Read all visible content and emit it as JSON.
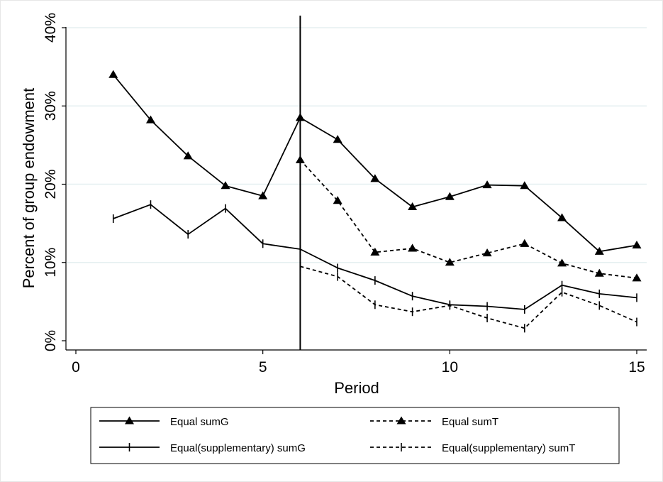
{
  "chart_data": {
    "type": "line",
    "xlabel": "Period",
    "ylabel": "Percent of group endowment",
    "xlim": [
      0,
      15
    ],
    "ylim": [
      0,
      40
    ],
    "x_ticks": [
      "0",
      "5",
      "10",
      "15"
    ],
    "y_ticks": [
      "0%",
      "10%",
      "20%",
      "30%",
      "40%"
    ],
    "y_tick_values": [
      0,
      10,
      20,
      30,
      40
    ],
    "x_tick_values": [
      0,
      5,
      10,
      15
    ],
    "grid": "horizontal",
    "reference_line": {
      "x": 6
    },
    "legend_position": "bottom",
    "series": [
      {
        "name": "Equal sumG",
        "line": "solid",
        "marker": "triangle",
        "x": [
          1,
          2,
          3,
          4,
          5,
          6,
          7,
          8,
          9,
          10,
          11,
          12,
          13,
          14,
          15
        ],
        "values": [
          34.0,
          28.2,
          23.6,
          19.8,
          18.5,
          28.5,
          25.7,
          20.7,
          17.1,
          18.4,
          19.9,
          19.8,
          15.7,
          11.4,
          12.2
        ]
      },
      {
        "name": "Equal sumT",
        "line": "dashed",
        "marker": "triangle",
        "x": [
          6,
          7,
          8,
          9,
          10,
          11,
          12,
          13,
          14,
          15
        ],
        "values": [
          23.1,
          17.9,
          11.3,
          11.8,
          10.0,
          11.2,
          12.4,
          9.9,
          8.6,
          8.0
        ]
      },
      {
        "name": "Equal(supplementary) sumG",
        "line": "solid",
        "marker": "tick",
        "x": [
          1,
          2,
          3,
          4,
          5,
          6,
          7,
          8,
          9,
          10,
          11,
          12,
          13,
          14,
          15
        ],
        "values": [
          15.6,
          17.4,
          13.6,
          16.9,
          12.4,
          11.7,
          9.3,
          7.7,
          5.7,
          4.6,
          4.4,
          4.0,
          7.1,
          6.0,
          5.5
        ]
      },
      {
        "name": "Equal(supplementary) sumT",
        "line": "dashed",
        "marker": "tick",
        "x": [
          6,
          7,
          8,
          9,
          10,
          11,
          12,
          13,
          14,
          15
        ],
        "values": [
          9.5,
          8.2,
          4.6,
          3.7,
          4.5,
          2.9,
          1.6,
          6.2,
          4.5,
          2.4
        ]
      }
    ]
  }
}
